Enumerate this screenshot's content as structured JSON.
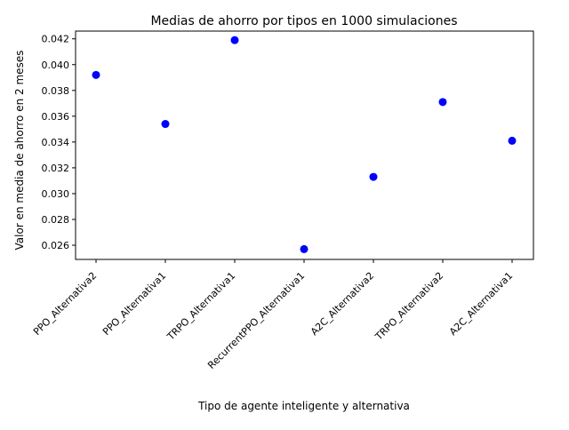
{
  "chart_data": {
    "type": "scatter",
    "title": "Medias de ahorro por tipos en 1000 simulaciones",
    "xlabel": "Tipo de agente inteligente y alternativa",
    "ylabel": "Valor en media de ahorro en 2 meses",
    "categories": [
      "PPO_Alternativa2",
      "PPO_Alternativa1",
      "TRPO_Alternativa1",
      "RecurrentPPO_Alternativa1",
      "A2C_Alternativa2",
      "TRPO_Alternativa2",
      "A2C_Alternativa1"
    ],
    "values": [
      0.0392,
      0.0354,
      0.0419,
      0.0257,
      0.0313,
      0.0371,
      0.0341
    ],
    "ylim": [
      0.0249,
      0.0426
    ],
    "yticks": [
      "0.026",
      "0.028",
      "0.030",
      "0.032",
      "0.034",
      "0.036",
      "0.038",
      "0.040",
      "0.042"
    ],
    "marker_color": "#0000ff",
    "grid": false,
    "legend": "none"
  }
}
